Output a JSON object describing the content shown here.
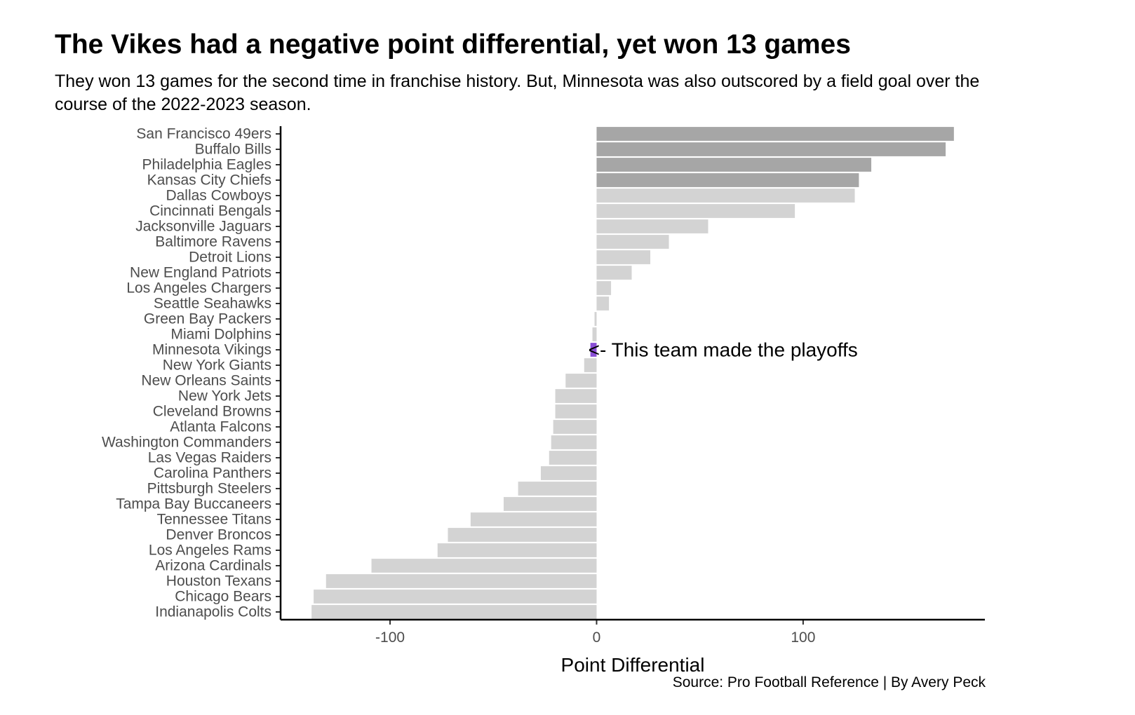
{
  "chart_data": {
    "type": "bar",
    "orientation": "horizontal",
    "title": "The Vikes had a negative point differential, yet won 13 games",
    "subtitle": "They won 13 games for the second time in franchise history. But, Minnesota was also outscored by a field goal over the course of the 2022-2023 season.",
    "xlabel": "Point Differential",
    "ylabel": "",
    "caption": "Source: Pro Football Reference | By Avery Peck",
    "xlim": [
      -153,
      188
    ],
    "xticks": [
      -100,
      0,
      100
    ],
    "xtick_labels": [
      "-100",
      "0",
      "100"
    ],
    "grid": false,
    "legend": "none",
    "annotation": {
      "text": "<- This team made the playoffs",
      "team": "Minnesota Vikings",
      "x": -3
    },
    "colors": {
      "dark": "#a6a6a6",
      "light": "#d3d3d3",
      "highlight": "#8a4fd6"
    },
    "categories": [
      "San Francisco 49ers",
      "Buffalo Bills",
      "Philadelphia Eagles",
      "Kansas City Chiefs",
      "Dallas Cowboys",
      "Cincinnati Bengals",
      "Jacksonville Jaguars",
      "Baltimore Ravens",
      "Detroit Lions",
      "New England Patriots",
      "Los Angeles Chargers",
      "Seattle Seahawks",
      "Green Bay Packers",
      "Miami Dolphins",
      "Minnesota Vikings",
      "New York Giants",
      "New Orleans Saints",
      "New York Jets",
      "Cleveland Browns",
      "Atlanta Falcons",
      "Washington Commanders",
      "Las Vegas Raiders",
      "Carolina Panthers",
      "Pittsburgh Steelers",
      "Tampa Bay Buccaneers",
      "Tennessee Titans",
      "Denver Broncos",
      "Los Angeles Rams",
      "Arizona Cardinals",
      "Houston Texans",
      "Chicago Bears",
      "Indianapolis Colts"
    ],
    "values": [
      173,
      169,
      133,
      127,
      125,
      96,
      54,
      35,
      26,
      17,
      7,
      6,
      -1,
      -2,
      -3,
      -6,
      -15,
      -20,
      -20,
      -21,
      -22,
      -23,
      -27,
      -38,
      -45,
      -61,
      -72,
      -77,
      -109,
      -131,
      -137,
      -138
    ],
    "bar_color_keys": [
      "dark",
      "dark",
      "dark",
      "dark",
      "light",
      "light",
      "light",
      "light",
      "light",
      "light",
      "light",
      "light",
      "light",
      "light",
      "highlight",
      "light",
      "light",
      "light",
      "light",
      "light",
      "light",
      "light",
      "light",
      "light",
      "light",
      "light",
      "light",
      "light",
      "light",
      "light",
      "light",
      "light"
    ]
  }
}
